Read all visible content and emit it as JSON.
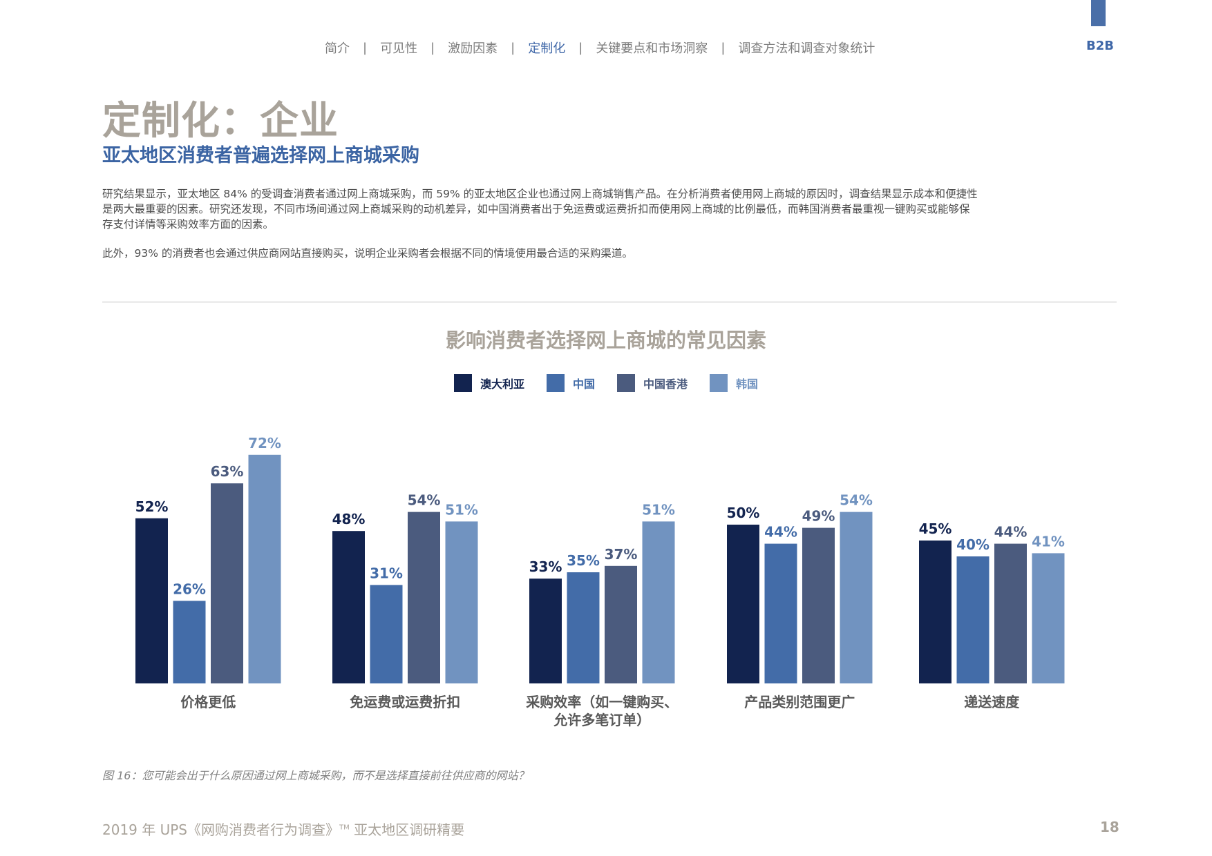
{
  "nav": {
    "items": [
      "简介",
      "可见性",
      "激励因素",
      "定制化",
      "关键要点和市场洞察",
      "调查方法和调查对象统计"
    ],
    "active_index": 3,
    "section_label": "B2B"
  },
  "header": {
    "title": "定制化：企业",
    "subtitle": "亚太地区消费者普遍选择网上商城采购"
  },
  "body": {
    "paragraph1_line1": "研究结果显示，亚太地区 84% 的受调查消费者通过网上商城采购，而 59% 的亚太地区企业也通过网上商城销售产品。在分析消费者使用网上商城的原因时，调查结果显示成本和便捷性",
    "paragraph1_line2": "是两大最重要的因素。研究还发现，不同市场间通过网上商城采购的动机差异，如中国消费者出于免运费或运费折扣而使用网上商城的比例最低，而韩国消费者最重视一键购买或能够保",
    "paragraph1_line3": "存支付详情等采购效率方面的因素。",
    "paragraph2": "此外，93% 的消费者也会通过供应商网站直接购买，说明企业采购者会根据不同的情境使用最合适的采购渠道。"
  },
  "chart_data": {
    "type": "bar",
    "title": "影响消费者选择网上商城的常见因素",
    "categories": [
      [
        "价格更低"
      ],
      [
        "免运费或运费折扣"
      ],
      [
        "采购效率（如一键购买、",
        "允许多笔订单）"
      ],
      [
        "产品类别范围更广"
      ],
      [
        "递送速度"
      ]
    ],
    "series": [
      {
        "name": "澳大利亚",
        "color": "#12234f",
        "label_color": "#12234f",
        "values": [
          52,
          48,
          33,
          50,
          45
        ]
      },
      {
        "name": "中国",
        "color": "#436ca8",
        "label_color": "#436ca8",
        "values": [
          26,
          31,
          35,
          44,
          40
        ]
      },
      {
        "name": "中国香港",
        "color": "#4b5b7e",
        "label_color": "#4b5b7e",
        "values": [
          63,
          54,
          37,
          49,
          44
        ]
      },
      {
        "name": "韩国",
        "color": "#7193c0",
        "label_color": "#7193c0",
        "values": [
          72,
          51,
          51,
          54,
          41
        ]
      }
    ],
    "value_suffix": "%",
    "ylim": [
      0,
      100
    ],
    "grid": false,
    "legend_position": "top-center"
  },
  "caption": "图 16：您可能会出于什么原因通过网上商城采购，而不是选择直接前往供应商的网站？",
  "footer": {
    "text_before": "2019 年 UPS《网购消费者行为调查》",
    "tm": "TM",
    "text_after": " 亚太地区调研精要",
    "page_number": "18"
  }
}
